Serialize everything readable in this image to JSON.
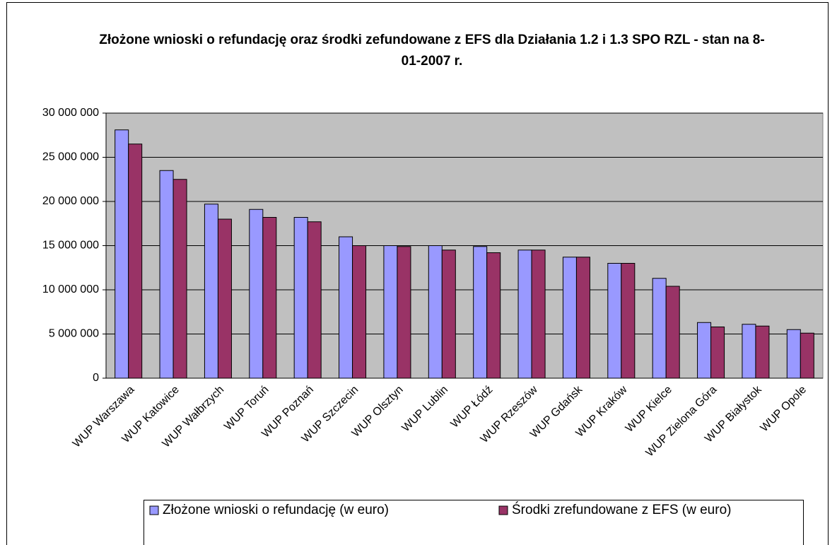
{
  "chart_data": {
    "type": "bar",
    "title": "Złożone wnioski o refundację oraz środki zefundowane z EFS dla Działania 1.2 i 1.3 SPO RZL - stan na 8-01-2007 r.",
    "categories": [
      "WUP Warszawa",
      "WUP Katowice",
      "WUP Wałbrzych",
      "WUP Toruń",
      "WUP Poznań",
      "WUP Szczecin",
      "WUP Olsztyn",
      "WUP Lublin",
      "WUP Łódź",
      "WUP Rzeszów",
      "WUP Gdańsk",
      "WUP Kraków",
      "WUP Kielce",
      "WUP Zielona Góra",
      "WUP Białystok",
      "WUP Opole"
    ],
    "series": [
      {
        "name": "Złożone wnioski o refundację (w euro)",
        "color": "#9999ff",
        "values": [
          28100000,
          23500000,
          19700000,
          19100000,
          18200000,
          16000000,
          15000000,
          15000000,
          14900000,
          14500000,
          13700000,
          13000000,
          11300000,
          6300000,
          6100000,
          5500000
        ]
      },
      {
        "name": "Środki zrefundowane z EFS (w euro)",
        "color": "#993366",
        "values": [
          26500000,
          22500000,
          18000000,
          18200000,
          17700000,
          15000000,
          14900000,
          14500000,
          14200000,
          14500000,
          13700000,
          13000000,
          10400000,
          5800000,
          5900000,
          5100000
        ]
      }
    ],
    "ylim": [
      0,
      30000000
    ],
    "yticks": [
      0,
      {
        "value": 5000000,
        "label": "5 000 000"
      },
      {
        "value": 10000000,
        "label": "10 000 000"
      },
      {
        "value": 15000000,
        "label": "15 000 000"
      },
      {
        "value": 20000000,
        "label": "20 000 000"
      },
      {
        "value": 25000000,
        "label": "25 000 000"
      },
      {
        "value": 30000000,
        "label": "30 000 000"
      }
    ],
    "grid": true,
    "legend": "bottom",
    "plot_background": "#c0c0c0"
  }
}
